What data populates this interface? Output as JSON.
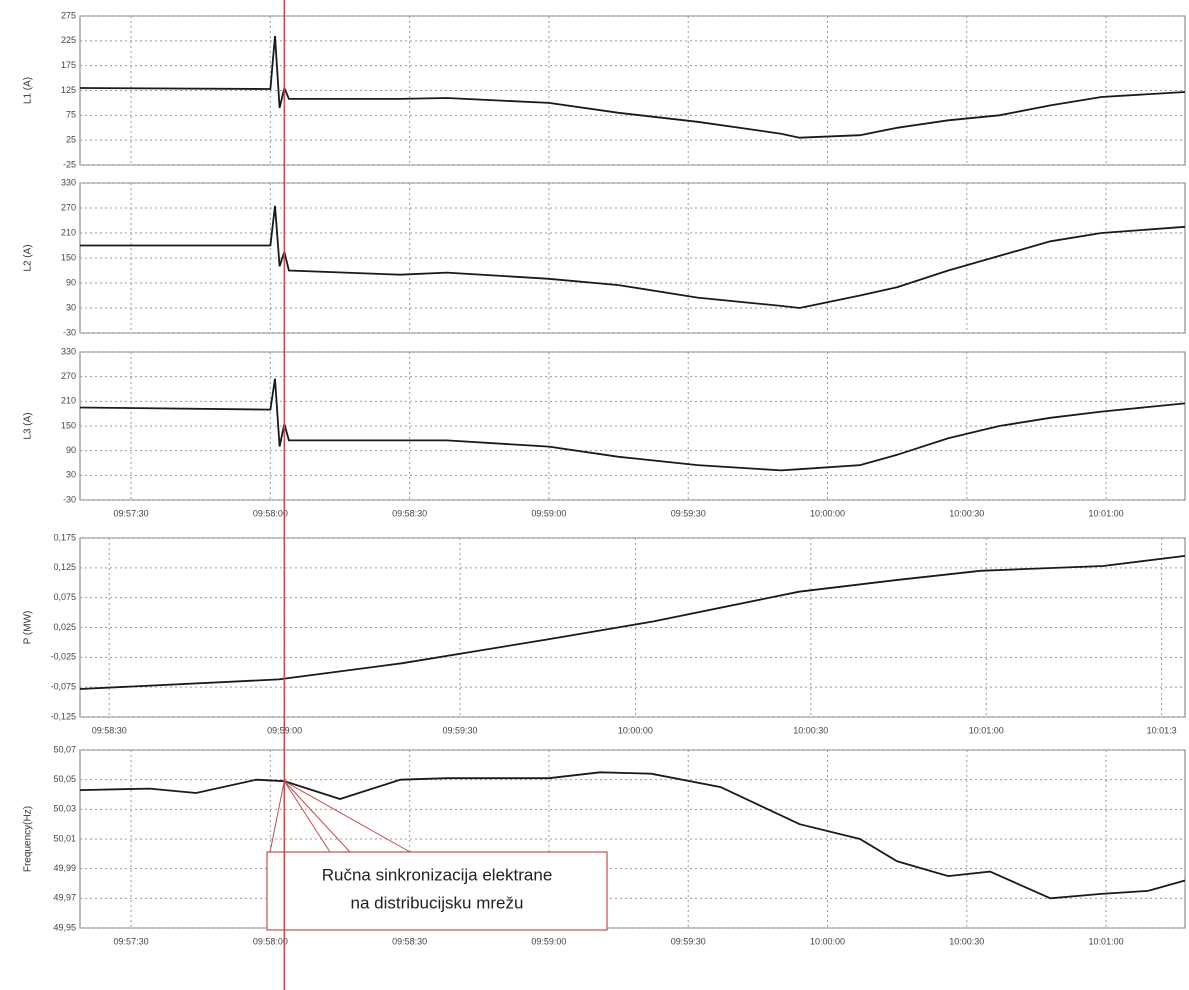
{
  "chart_data": [
    {
      "type": "line",
      "ylabel": "L1 (A)",
      "color": "#1a1a1a",
      "grid": true,
      "xtick_labels": false,
      "x": [
        35839,
        35880,
        35881,
        35882,
        35883,
        35884,
        35908,
        35918,
        35940,
        35955,
        35972,
        35990,
        35994,
        36007,
        36015,
        36026,
        36037,
        36048,
        36059,
        36077
      ],
      "values": [
        130,
        128,
        235,
        90,
        130,
        108,
        108,
        110,
        100,
        80,
        62,
        38,
        30,
        35,
        50,
        65,
        75,
        95,
        112,
        122
      ],
      "xlim": [
        35839,
        36077
      ],
      "xticks": [
        {
          "value": 35850,
          "label": "09:57:30"
        },
        {
          "value": 35880,
          "label": "09:58:00"
        },
        {
          "value": 35910,
          "label": "09:58:30"
        },
        {
          "value": 35940,
          "label": "09:59:00"
        },
        {
          "value": 35970,
          "label": "09:59:30"
        },
        {
          "value": 36000,
          "label": "10:00:00"
        },
        {
          "value": 36030,
          "label": "10:00:30"
        },
        {
          "value": 36060,
          "label": "10:01:00"
        }
      ],
      "ylim": [
        -25,
        275
      ],
      "yticks": [
        -25,
        25,
        75,
        125,
        175,
        225,
        275
      ]
    },
    {
      "type": "line",
      "ylabel": "L2 (A)",
      "color": "#1a1a1a",
      "grid": true,
      "xtick_labels": false,
      "x": [
        35839,
        35880,
        35881,
        35882,
        35883,
        35884,
        35908,
        35918,
        35940,
        35955,
        35972,
        35990,
        35994,
        36007,
        36015,
        36026,
        36037,
        36048,
        36059,
        36077
      ],
      "values": [
        180,
        180,
        275,
        130,
        165,
        120,
        110,
        115,
        100,
        85,
        55,
        35,
        30,
        60,
        80,
        120,
        155,
        190,
        210,
        225
      ],
      "xlim": [
        35839,
        36077
      ],
      "xticks": [
        {
          "value": 35850,
          "label": "09:57:30"
        },
        {
          "value": 35880,
          "label": "09:58:00"
        },
        {
          "value": 35910,
          "label": "09:58:30"
        },
        {
          "value": 35940,
          "label": "09:59:00"
        },
        {
          "value": 35970,
          "label": "09:59:30"
        },
        {
          "value": 36000,
          "label": "10:00:00"
        },
        {
          "value": 36030,
          "label": "10:00:30"
        },
        {
          "value": 36060,
          "label": "10:01:00"
        }
      ],
      "ylim": [
        -30,
        330
      ],
      "yticks": [
        -30,
        30,
        90,
        150,
        210,
        270,
        330
      ]
    },
    {
      "type": "line",
      "ylabel": "L3 (A)",
      "color": "#1a1a1a",
      "grid": true,
      "xtick_labels": true,
      "x": [
        35839,
        35880,
        35881,
        35882,
        35883,
        35884,
        35908,
        35918,
        35940,
        35955,
        35972,
        35990,
        35994,
        36007,
        36015,
        36026,
        36037,
        36048,
        36059,
        36077
      ],
      "values": [
        195,
        190,
        265,
        100,
        155,
        115,
        115,
        115,
        100,
        75,
        55,
        42,
        45,
        55,
        80,
        120,
        150,
        170,
        185,
        205
      ],
      "xlim": [
        35839,
        36077
      ],
      "xticks": [
        {
          "value": 35850,
          "label": "09:57:30"
        },
        {
          "value": 35880,
          "label": "09:58:00"
        },
        {
          "value": 35910,
          "label": "09:58:30"
        },
        {
          "value": 35940,
          "label": "09:59:00"
        },
        {
          "value": 35970,
          "label": "09:59:30"
        },
        {
          "value": 36000,
          "label": "10:00:00"
        },
        {
          "value": 36030,
          "label": "10:00:30"
        },
        {
          "value": 36060,
          "label": "10:01:00"
        }
      ],
      "ylim": [
        -30,
        330
      ],
      "yticks": [
        -30,
        30,
        90,
        150,
        210,
        270,
        330
      ]
    },
    {
      "type": "line",
      "ylabel": "P (MW)",
      "color": "#1a1a1a",
      "grid": true,
      "xtick_labels": true,
      "x": [
        35905,
        35939,
        35960,
        35985,
        36003,
        36028,
        36045,
        36059,
        36080,
        36094
      ],
      "values": [
        -0.078,
        -0.062,
        -0.035,
        0.005,
        0.035,
        0.085,
        0.105,
        0.12,
        0.128,
        0.145
      ],
      "xlim": [
        35905,
        36094
      ],
      "xticks": [
        {
          "value": 35910,
          "label": "09:58:30"
        },
        {
          "value": 35940,
          "label": "09:59:00"
        },
        {
          "value": 35970,
          "label": "09:59:30"
        },
        {
          "value": 36000,
          "label": "10:00:00"
        },
        {
          "value": 36030,
          "label": "10:00:30"
        },
        {
          "value": 36060,
          "label": "10:01:00"
        },
        {
          "value": 36090,
          "label": "10:01:3"
        }
      ],
      "ylim": [
        -0.125,
        0.175
      ],
      "yticks": [
        {
          "value": -0.125,
          "label": "-0,125"
        },
        {
          "value": -0.075,
          "label": "-0,075"
        },
        {
          "value": -0.025,
          "label": "-0,025"
        },
        {
          "value": 0.025,
          "label": "0,025"
        },
        {
          "value": 0.075,
          "label": "0,075"
        },
        {
          "value": 0.125,
          "label": "0,125"
        },
        {
          "value": 0.175,
          "label": "0,175"
        }
      ]
    },
    {
      "type": "line",
      "ylabel": "Frequency(Hz)",
      "color": "#1a1a1a",
      "grid": true,
      "xtick_labels": true,
      "x": [
        35839,
        35854,
        35864,
        35877,
        35883,
        35895,
        35908,
        35918,
        35940,
        35951,
        35962,
        35977,
        35994,
        36007,
        36015,
        36026,
        36035,
        36048,
        36059,
        36069,
        36077
      ],
      "values": [
        50.043,
        50.044,
        50.041,
        50.05,
        50.049,
        50.037,
        50.05,
        50.051,
        50.051,
        50.055,
        50.054,
        50.045,
        50.02,
        50.01,
        49.995,
        49.985,
        49.988,
        49.97,
        49.973,
        49.975,
        49.982
      ],
      "xlim": [
        35839,
        36077
      ],
      "xticks": [
        {
          "value": 35850,
          "label": "09:57:30"
        },
        {
          "value": 35880,
          "label": "09:58:00"
        },
        {
          "value": 35910,
          "label": "09:58:30"
        },
        {
          "value": 35940,
          "label": "09:59:00"
        },
        {
          "value": 35970,
          "label": "09:59:30"
        },
        {
          "value": 36000,
          "label": "10:00:00"
        },
        {
          "value": 36030,
          "label": "10:00:30"
        },
        {
          "value": 36060,
          "label": "10:01:00"
        }
      ],
      "ylim": [
        49.95,
        50.07
      ],
      "yticks": [
        {
          "value": 49.95,
          "label": "49,95"
        },
        {
          "value": 49.97,
          "label": "49,97"
        },
        {
          "value": 49.99,
          "label": "49,99"
        },
        {
          "value": 50.01,
          "label": "50,01"
        },
        {
          "value": 50.03,
          "label": "50,03"
        },
        {
          "value": 50.05,
          "label": "50,05"
        },
        {
          "value": 50.07,
          "label": "50,07"
        }
      ],
      "annotation": {
        "lines": [
          "Ručna sinkronizacija elektrane",
          "na distribucijsku mrežu"
        ],
        "x": 35883,
        "y": 50.049,
        "color": "#c0504d"
      }
    }
  ]
}
